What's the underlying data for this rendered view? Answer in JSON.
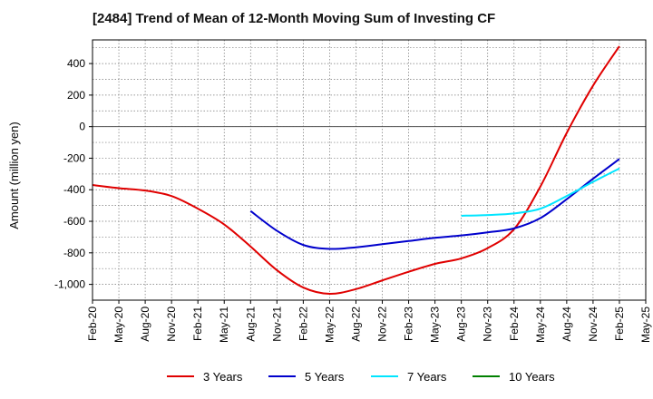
{
  "chart_data": {
    "type": "line",
    "title": "[2484]  Trend of Mean of 12-Month Moving Sum of Investing CF",
    "xlabel": "",
    "ylabel": "Amount (million yen)",
    "ylim": [
      -1100,
      550
    ],
    "yticks": [
      400,
      200,
      0,
      -200,
      -400,
      -600,
      -800,
      -1000
    ],
    "ytick_labels": [
      "400",
      "200",
      "0",
      "-200",
      "-400",
      "-600",
      "-800",
      "-1,000"
    ],
    "categories": [
      "Feb-20",
      "May-20",
      "Aug-20",
      "Nov-20",
      "Feb-21",
      "May-21",
      "Aug-21",
      "Nov-21",
      "Feb-22",
      "May-22",
      "Aug-22",
      "Nov-22",
      "Feb-23",
      "May-23",
      "Aug-23",
      "Nov-23",
      "Feb-24",
      "May-24",
      "Aug-24",
      "Nov-24",
      "Feb-25",
      "May-25"
    ],
    "grid": true,
    "legend_position": "bottom",
    "series": [
      {
        "name": "3 Years",
        "color": "#e00000",
        "values": [
          -370,
          -390,
          -405,
          -440,
          -520,
          -620,
          -760,
          -910,
          -1020,
          -1060,
          -1030,
          -975,
          -920,
          -870,
          -835,
          -770,
          -650,
          -380,
          -40,
          260,
          510,
          null
        ]
      },
      {
        "name": "5 Years",
        "color": "#0000cc",
        "values": [
          null,
          null,
          null,
          null,
          null,
          null,
          -535,
          -660,
          -750,
          -775,
          -765,
          -745,
          -725,
          -705,
          -690,
          -670,
          -645,
          -580,
          -460,
          -330,
          -205,
          null
        ]
      },
      {
        "name": "7 Years",
        "color": "#00e5ff",
        "values": [
          null,
          null,
          null,
          null,
          null,
          null,
          null,
          null,
          null,
          null,
          null,
          null,
          null,
          null,
          -565,
          -560,
          -550,
          -520,
          -440,
          -350,
          -265,
          null
        ]
      },
      {
        "name": "10 Years",
        "color": "#008000",
        "values": [
          null,
          null,
          null,
          null,
          null,
          null,
          null,
          null,
          null,
          null,
          null,
          null,
          null,
          null,
          null,
          null,
          null,
          null,
          null,
          null,
          null,
          null
        ]
      }
    ]
  }
}
